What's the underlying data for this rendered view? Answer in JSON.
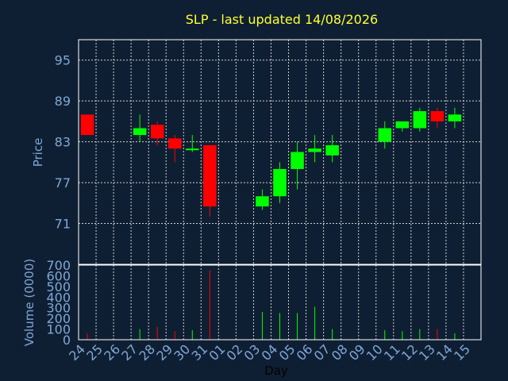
{
  "title": "SLP - last updated 14/08/2026",
  "colors": {
    "background": "#0f1f33",
    "up": "#00ff00",
    "down": "#ff0000",
    "text": "#7fa7d6",
    "title": "#ffff33",
    "grid": "#d0d0d0"
  },
  "chart_data": [
    {
      "type": "candlestick",
      "ylabel": "Price",
      "ylim": [
        65,
        98
      ],
      "yticks": [
        71,
        77,
        83,
        89,
        95
      ],
      "grid": true,
      "candles": [
        {
          "day": "24",
          "open": 87.0,
          "high": 87.0,
          "low": 84.0,
          "close": 84.0
        },
        {
          "day": "27",
          "open": 84.0,
          "high": 87.0,
          "low": 83.0,
          "close": 85.0
        },
        {
          "day": "28",
          "open": 85.5,
          "high": 86.0,
          "low": 82.5,
          "close": 83.5
        },
        {
          "day": "29",
          "open": 83.5,
          "high": 84.0,
          "low": 80.0,
          "close": 82.0
        },
        {
          "day": "30",
          "open": 82.0,
          "high": 84.0,
          "low": 81.5,
          "close": 82.0
        },
        {
          "day": "31",
          "open": 82.5,
          "high": 82.5,
          "low": 72.0,
          "close": 73.5
        },
        {
          "day": "03",
          "open": 73.5,
          "high": 76.0,
          "low": 73.0,
          "close": 75.0
        },
        {
          "day": "04",
          "open": 75.0,
          "high": 80.0,
          "low": 74.0,
          "close": 79.0
        },
        {
          "day": "05",
          "open": 79.0,
          "high": 83.0,
          "low": 76.0,
          "close": 81.5
        },
        {
          "day": "06",
          "open": 81.5,
          "high": 84.0,
          "low": 80.0,
          "close": 82.0
        },
        {
          "day": "07",
          "open": 81.0,
          "high": 84.0,
          "low": 80.0,
          "close": 82.5
        },
        {
          "day": "10",
          "open": 83.0,
          "high": 86.0,
          "low": 82.0,
          "close": 85.0
        },
        {
          "day": "11",
          "open": 85.0,
          "high": 86.0,
          "low": 84.5,
          "close": 86.0
        },
        {
          "day": "12",
          "open": 85.0,
          "high": 88.0,
          "low": 84.5,
          "close": 87.5
        },
        {
          "day": "13",
          "open": 87.5,
          "high": 88.0,
          "low": 85.0,
          "close": 86.0
        },
        {
          "day": "14",
          "open": 86.0,
          "high": 88.0,
          "low": 85.0,
          "close": 87.0
        }
      ]
    },
    {
      "type": "bar",
      "ylabel": "Volume (0000)",
      "xlabel": "Day",
      "ylim": [
        0,
        700
      ],
      "yticks": [
        0,
        100,
        200,
        300,
        400,
        500,
        600,
        700
      ],
      "categories": [
        "24",
        "25",
        "26",
        "27",
        "28",
        "29",
        "30",
        "31",
        "01",
        "02",
        "03",
        "04",
        "05",
        "06",
        "07",
        "08",
        "09",
        "10",
        "11",
        "12",
        "13",
        "14",
        "15"
      ],
      "volumes": [
        {
          "day": "24",
          "value": 60,
          "color": "down"
        },
        {
          "day": "27",
          "value": 100,
          "color": "up"
        },
        {
          "day": "28",
          "value": 120,
          "color": "down"
        },
        {
          "day": "29",
          "value": 80,
          "color": "down"
        },
        {
          "day": "30",
          "value": 90,
          "color": "up"
        },
        {
          "day": "31",
          "value": 650,
          "color": "down"
        },
        {
          "day": "03",
          "value": 260,
          "color": "up"
        },
        {
          "day": "04",
          "value": 250,
          "color": "up"
        },
        {
          "day": "05",
          "value": 250,
          "color": "up"
        },
        {
          "day": "06",
          "value": 310,
          "color": "up"
        },
        {
          "day": "07",
          "value": 100,
          "color": "up"
        },
        {
          "day": "10",
          "value": 90,
          "color": "up"
        },
        {
          "day": "11",
          "value": 80,
          "color": "up"
        },
        {
          "day": "12",
          "value": 100,
          "color": "up"
        },
        {
          "day": "13",
          "value": 100,
          "color": "down"
        },
        {
          "day": "14",
          "value": 60,
          "color": "up"
        }
      ]
    }
  ]
}
